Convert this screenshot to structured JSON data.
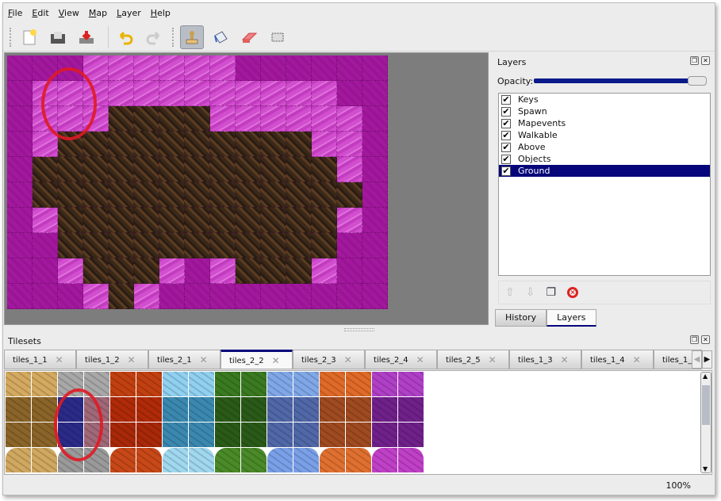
{
  "menu": [
    "File",
    "Edit",
    "View",
    "Map",
    "Layer",
    "Help"
  ],
  "toolbar": {
    "items": [
      {
        "name": "new-icon"
      },
      {
        "name": "open-icon"
      },
      {
        "name": "save-icon"
      },
      {
        "name": "undo-icon"
      },
      {
        "name": "redo-icon"
      },
      {
        "name": "stamp-brush-icon",
        "active": true
      },
      {
        "name": "bucket-fill-icon"
      },
      {
        "name": "eraser-icon"
      },
      {
        "name": "rect-select-icon"
      }
    ]
  },
  "layers_panel": {
    "title": "Layers",
    "opacity_label": "Opacity:",
    "opacity": 1.0,
    "layers": [
      {
        "name": "Keys",
        "visible": true
      },
      {
        "name": "Spawn",
        "visible": true
      },
      {
        "name": "Mapevents",
        "visible": true
      },
      {
        "name": "Walkable",
        "visible": true
      },
      {
        "name": "Above",
        "visible": true
      },
      {
        "name": "Objects",
        "visible": true
      },
      {
        "name": "Ground",
        "visible": true,
        "selected": true
      }
    ],
    "check": "✔",
    "tabs": [
      "History",
      "Layers"
    ],
    "active_tab": "Layers"
  },
  "tilesets_panel": {
    "title": "Tilesets",
    "tabs": [
      "tiles_1_1",
      "tiles_1_2",
      "tiles_2_1",
      "tiles_2_2",
      "tiles_2_3",
      "tiles_2_4",
      "tiles_2_5",
      "tiles_1_3",
      "tiles_1_4",
      "tiles_1_"
    ],
    "active_tab": "tiles_2_2"
  },
  "status": {
    "zoom": "100%"
  },
  "colors": {
    "accent": "#06067a",
    "annotation": "#e01a24"
  }
}
